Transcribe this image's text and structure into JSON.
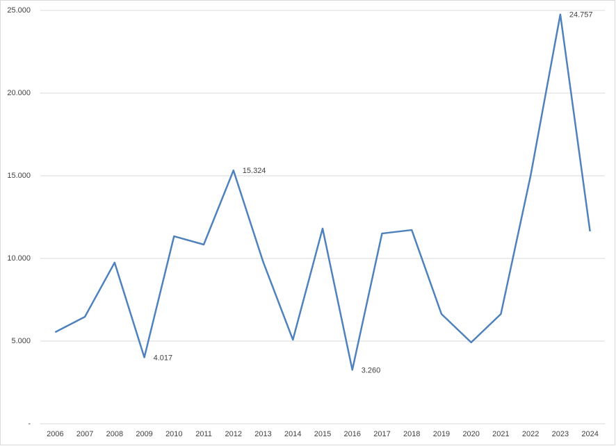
{
  "chart_data": {
    "type": "line",
    "categories": [
      "2006",
      "2007",
      "2008",
      "2009",
      "2010",
      "2011",
      "2012",
      "2013",
      "2014",
      "2015",
      "2016",
      "2017",
      "2018",
      "2019",
      "2020",
      "2021",
      "2022",
      "2023",
      "2024"
    ],
    "values": [
      5540,
      6470,
      9750,
      4017,
      11340,
      10840,
      15324,
      9790,
      5080,
      11810,
      3260,
      11510,
      11720,
      6640,
      4920,
      6640,
      15000,
      24757,
      11640
    ],
    "value_labels": [
      null,
      null,
      null,
      "4.017",
      null,
      null,
      "15.324",
      null,
      null,
      null,
      "3.260",
      null,
      null,
      null,
      null,
      null,
      null,
      "24.757",
      null
    ],
    "color": "#4f81bd",
    "ylim": [
      0,
      25000
    ],
    "yticks": [
      {
        "value": 0,
        "label": "-"
      },
      {
        "value": 5000,
        "label": "5.000"
      },
      {
        "value": 10000,
        "label": "10.000"
      },
      {
        "value": 15000,
        "label": "15.000"
      },
      {
        "value": 20000,
        "label": "20.000"
      },
      {
        "value": 25000,
        "label": "25.000"
      }
    ],
    "grid": true
  }
}
